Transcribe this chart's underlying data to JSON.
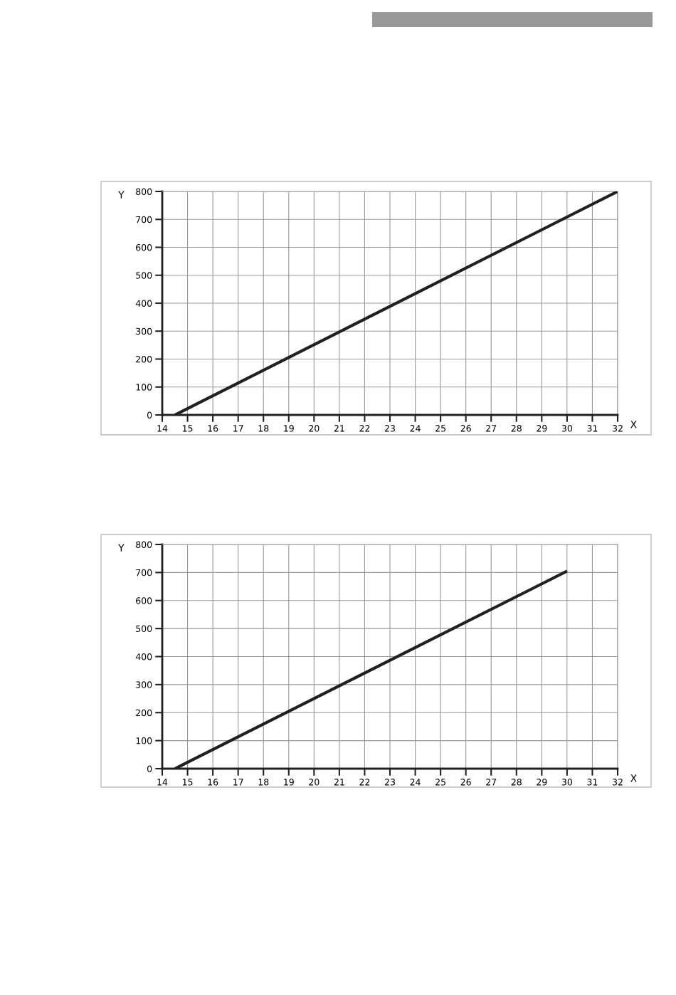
{
  "chart_data": [
    {
      "type": "line",
      "xlabel": "X",
      "ylabel": "Y",
      "xlim": [
        14,
        32
      ],
      "ylim": [
        0,
        800
      ],
      "xticks": [
        14,
        15,
        16,
        17,
        18,
        19,
        20,
        21,
        22,
        23,
        24,
        25,
        26,
        27,
        28,
        29,
        30,
        31,
        32
      ],
      "yticks": [
        0,
        100,
        200,
        300,
        400,
        500,
        600,
        700,
        800
      ],
      "grid": true,
      "legend": false,
      "marker": "none",
      "line_style": "solid",
      "series": [
        {
          "color": "#231f20",
          "x": [
            14.5,
            32
          ],
          "values": [
            0,
            800
          ]
        }
      ]
    },
    {
      "type": "line",
      "xlabel": "X",
      "ylabel": "Y",
      "xlim": [
        14,
        32
      ],
      "ylim": [
        0,
        800
      ],
      "xticks": [
        14,
        15,
        16,
        17,
        18,
        19,
        20,
        21,
        22,
        23,
        24,
        25,
        26,
        27,
        28,
        29,
        30,
        31,
        32
      ],
      "yticks": [
        0,
        100,
        200,
        300,
        400,
        500,
        600,
        700,
        800
      ],
      "grid": true,
      "legend": false,
      "marker": "none",
      "line_style": "solid",
      "series": [
        {
          "color": "#231f20",
          "x": [
            14.5,
            30
          ],
          "values": [
            0,
            705
          ]
        }
      ]
    }
  ]
}
